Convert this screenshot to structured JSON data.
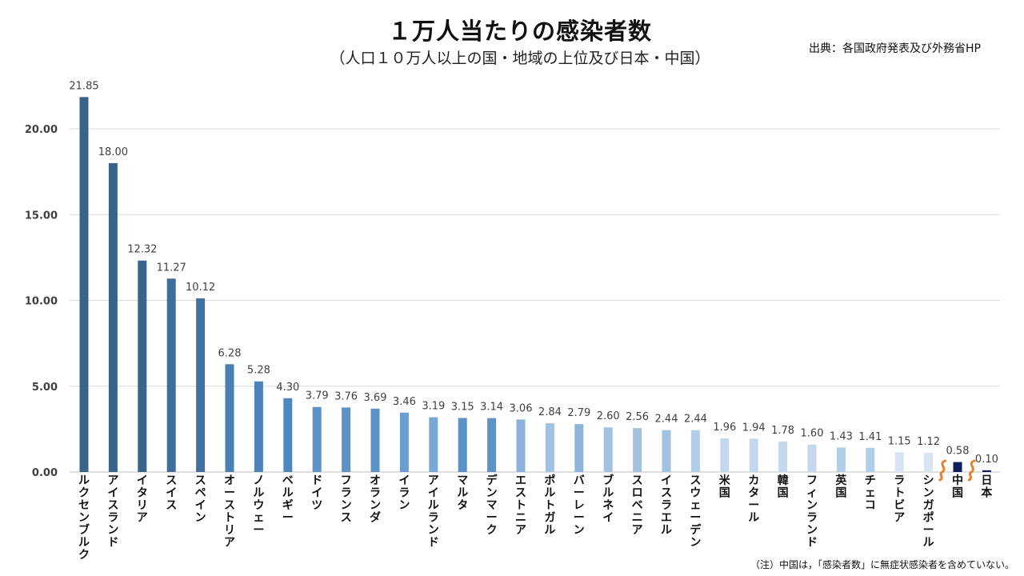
{
  "header": {
    "title": "１万人当たりの感染者数",
    "subtitle": "（人口１０万人以上の国・地域の上位及び日本・中国）",
    "source": "出典：各国政府発表及び外務省HP"
  },
  "footer": {
    "note": "（注）中国は，「感染者数」に無症状感染者を含めていない。"
  },
  "chart_data": {
    "type": "bar",
    "title": "１万人当たりの感染者数",
    "subtitle": "（人口１０万人以上の国・地域の上位及び日本・中国）",
    "xlabel": "",
    "ylabel": "",
    "ylim": [
      0,
      23
    ],
    "yticks": [
      0,
      5,
      10,
      15,
      20
    ],
    "ytick_labels": [
      "0.00",
      "5.00",
      "10.00",
      "15.00",
      "20.00"
    ],
    "grid": true,
    "legend": "none",
    "categories": [
      "ルクセンブルク",
      "アイスランド",
      "イタリア",
      "スイス",
      "スペイン",
      "オーストリア",
      "ノルウェー",
      "ベルギー",
      "ドイツ",
      "フランス",
      "オランダ",
      "イラン",
      "アイルランド",
      "マルタ",
      "デンマーク",
      "エストニア",
      "ポルトガル",
      "バーレーン",
      "ブルネイ",
      "スロベニア",
      "イスラエル",
      "スウェーデン",
      "米国",
      "カタール",
      "韓国",
      "フィンランド",
      "英国",
      "チェコ",
      "ラトビア",
      "シンガポール",
      "中国",
      "日本"
    ],
    "values": [
      21.85,
      18.0,
      12.32,
      11.27,
      10.12,
      6.28,
      5.28,
      4.3,
      3.79,
      3.76,
      3.69,
      3.46,
      3.19,
      3.15,
      3.14,
      3.06,
      2.84,
      2.79,
      2.6,
      2.56,
      2.44,
      2.44,
      1.96,
      1.94,
      1.78,
      1.6,
      1.43,
      1.41,
      1.15,
      1.12,
      0.58,
      0.1
    ],
    "value_labels": [
      "21.85",
      "18.00",
      "12.32",
      "11.27",
      "10.12",
      "6.28",
      "5.28",
      "4.30",
      "3.79",
      "3.76",
      "3.69",
      "3.46",
      "3.19",
      "3.15",
      "3.14",
      "3.06",
      "2.84",
      "2.79",
      "2.60",
      "2.56",
      "2.44",
      "2.44",
      "1.96",
      "1.94",
      "1.78",
      "1.60",
      "1.43",
      "1.41",
      "1.15",
      "1.12",
      "0.58",
      "0.10"
    ],
    "colors": [
      "#3a6389",
      "#3a6389",
      "#3a6389",
      "#3e6e9b",
      "#4270a0",
      "#4a7fb3",
      "#4d83b8",
      "#4f87bd",
      "#5b93c8",
      "#5b93c8",
      "#5b93c8",
      "#6b9ed0",
      "#7aa8d6",
      "#5b93c8",
      "#5b93c8",
      "#8cb2db",
      "#a3c1e2",
      "#8eb4dc",
      "#a3c1e2",
      "#a3c1e2",
      "#a3c1e2",
      "#b3cce8",
      "#c4d7ee",
      "#c4d7ee",
      "#c4d7ee",
      "#c4d7ee",
      "#b3cce8",
      "#b3cce8",
      "#d8e4f3",
      "#d8e4f3",
      "#0d1f5c",
      "#0d1f5c"
    ],
    "axis_break_marker_color": "#e8822a",
    "axis_breaks_after": [
      "シンガポール",
      "中国"
    ]
  }
}
